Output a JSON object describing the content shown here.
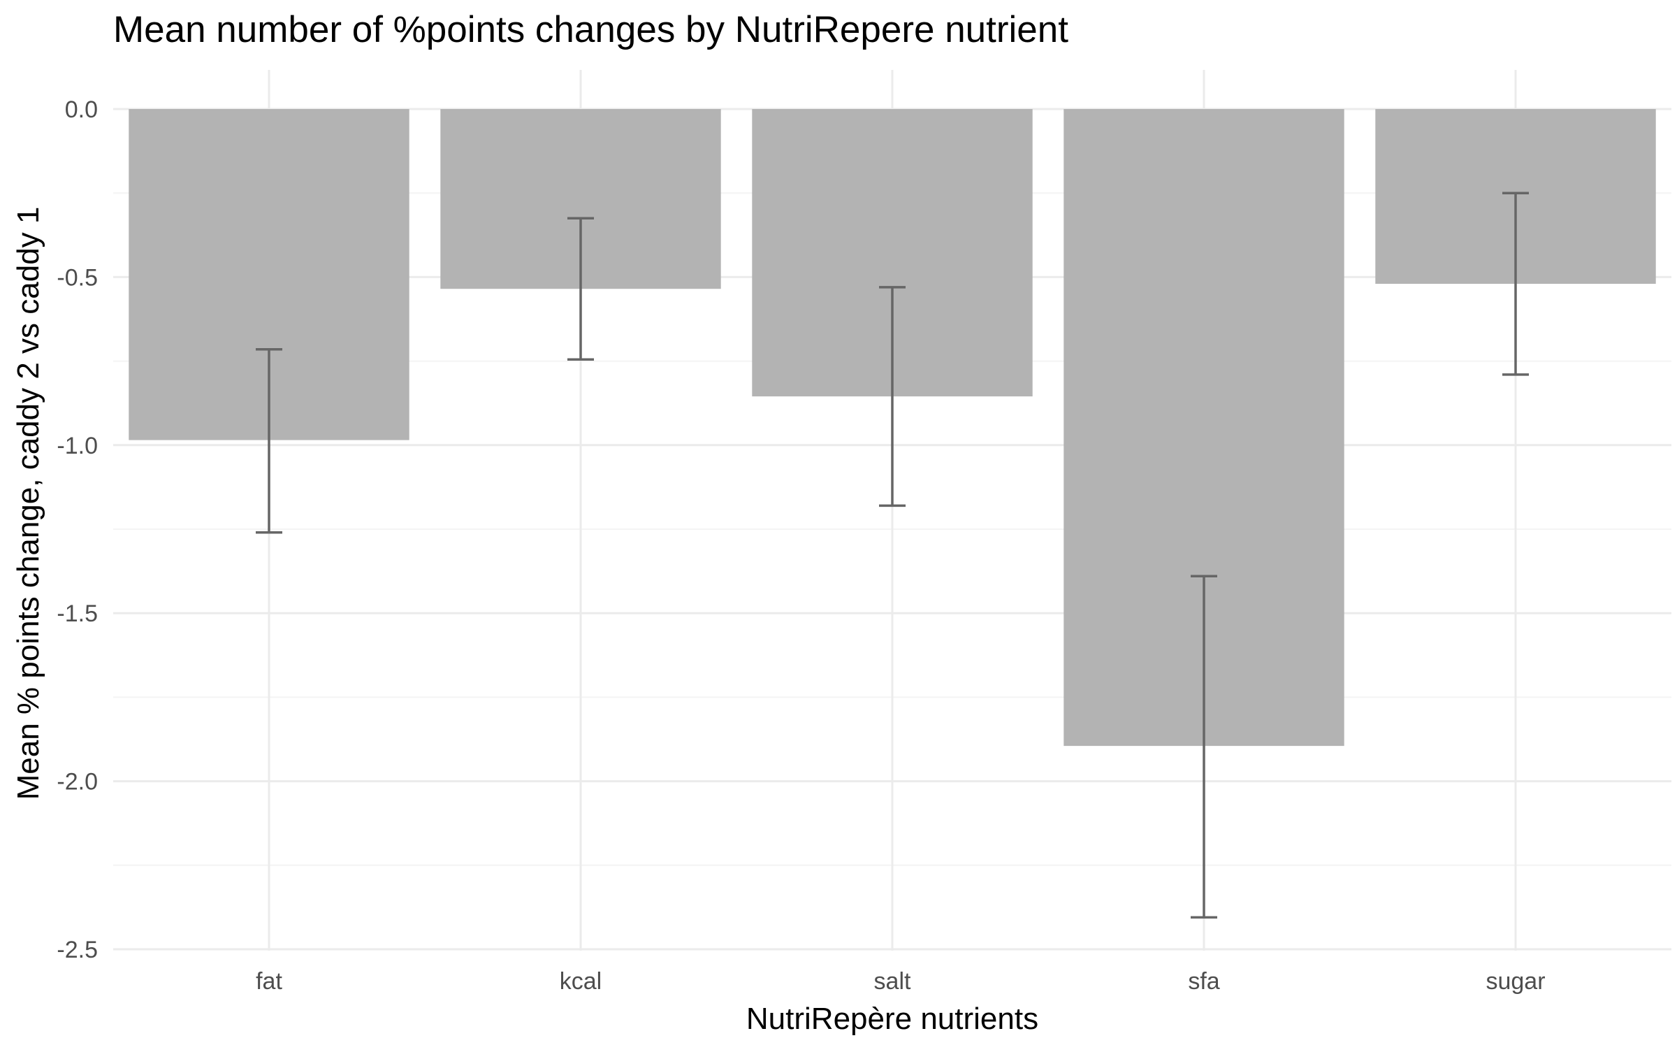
{
  "chart_data": {
    "type": "bar",
    "title": "Mean number of %points changes by NutriRepere nutrient",
    "xlabel": "NutriRepère nutrients",
    "ylabel": "Mean % points change, caddy 2 vs caddy 1",
    "categories": [
      "fat",
      "kcal",
      "salt",
      "sfa",
      "sugar"
    ],
    "values": [
      -0.985,
      -0.535,
      -0.855,
      -1.895,
      -0.52
    ],
    "error_bars": {
      "upper": [
        -0.715,
        -0.325,
        -0.53,
        -1.39,
        -0.25
      ],
      "lower": [
        -1.26,
        -0.745,
        -1.18,
        -2.405,
        -0.79
      ]
    },
    "ylim": [
      -2.5,
      0.0
    ],
    "y_ticks": [
      "0.0",
      "-0.5",
      "-1.0",
      "-1.5",
      "-2.0",
      "-2.5"
    ],
    "y_tick_values": [
      0.0,
      -0.5,
      -1.0,
      -1.5,
      -2.0,
      -2.5
    ],
    "grid": true,
    "legend": "none",
    "colors": {
      "bar": "#b3b3b3",
      "error_bar": "#666666",
      "grid_major": "#ebebeb",
      "grid_minor": "#f4f4f4"
    }
  }
}
